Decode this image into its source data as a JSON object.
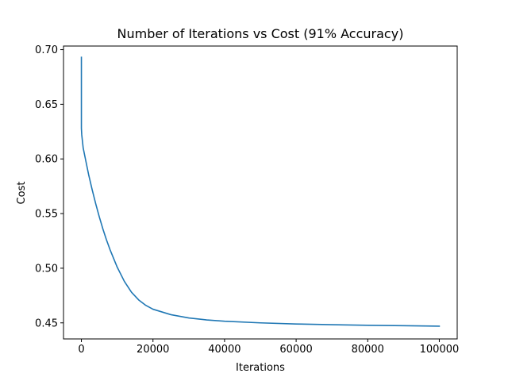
{
  "chart_data": {
    "type": "line",
    "title": "Number of Iterations vs Cost (91% Accuracy)",
    "xlabel": "Iterations",
    "ylabel": "Cost",
    "xlim": [
      -5000,
      105000
    ],
    "ylim": [
      0.4353,
      0.7033
    ],
    "grid": false,
    "legend": "none",
    "x_ticks": [
      {
        "value": 0,
        "label": "0"
      },
      {
        "value": 20000,
        "label": "20000"
      },
      {
        "value": 40000,
        "label": "40000"
      },
      {
        "value": 60000,
        "label": "60000"
      },
      {
        "value": 80000,
        "label": "80000"
      },
      {
        "value": 100000,
        "label": "100000"
      }
    ],
    "y_ticks": [
      {
        "value": 0.45,
        "label": "0.45"
      },
      {
        "value": 0.5,
        "label": "0.50"
      },
      {
        "value": 0.55,
        "label": "0.55"
      },
      {
        "value": 0.6,
        "label": "0.60"
      },
      {
        "value": 0.65,
        "label": "0.65"
      },
      {
        "value": 0.7,
        "label": "0.70"
      }
    ],
    "series": [
      {
        "color": "#1f77b4",
        "x": [
          0,
          1,
          100,
          500,
          1000,
          2000,
          3000,
          4000,
          5000,
          6000,
          7000,
          8000,
          9000,
          10000,
          12000,
          14000,
          16000,
          18000,
          20000,
          25000,
          30000,
          35000,
          40000,
          50000,
          60000,
          70000,
          80000,
          90000,
          100000
        ],
        "y": [
          0.693,
          0.628,
          0.622,
          0.61,
          0.602,
          0.586,
          0.572,
          0.559,
          0.547,
          0.536,
          0.526,
          0.517,
          0.509,
          0.501,
          0.488,
          0.478,
          0.471,
          0.466,
          0.4625,
          0.4575,
          0.4545,
          0.4527,
          0.4515,
          0.45,
          0.449,
          0.4483,
          0.4478,
          0.4474,
          0.447
        ]
      }
    ]
  }
}
